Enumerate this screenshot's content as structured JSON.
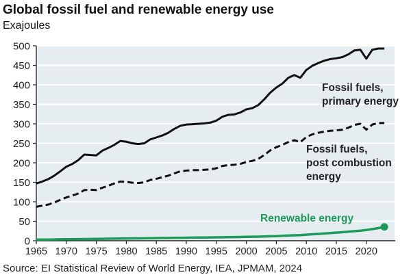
{
  "chart_data": {
    "type": "line",
    "title": "Global fossil fuel and renewable energy use",
    "subtitle": "Exajoules",
    "source": "Source: EI Statistical Review of World Energy, IEA, JPMAM, 2024",
    "xlabel": "",
    "ylabel": "Exajoules",
    "xlim": [
      1965,
      2023
    ],
    "ylim": [
      0,
      500
    ],
    "yticks": [
      "0",
      "50",
      "100",
      "150",
      "200",
      "250",
      "300",
      "350",
      "400",
      "450",
      "500"
    ],
    "xticks": [
      "1965",
      "1970",
      "1975",
      "1980",
      "1985",
      "1990",
      "1995",
      "2000",
      "2005",
      "2010",
      "2015",
      "2020"
    ],
    "grid": true,
    "x_start": 1965,
    "series": [
      {
        "name": "Fossil fuels, primary energy",
        "label_lines": [
          "Fossil fuels,",
          "primary energy"
        ],
        "color": "#111111",
        "style": "solid",
        "values": [
          147,
          152,
          158,
          167,
          178,
          190,
          197,
          207,
          221,
          220,
          219,
          231,
          238,
          246,
          256,
          254,
          250,
          248,
          250,
          260,
          265,
          270,
          277,
          287,
          295,
          298,
          299,
          300,
          301,
          303,
          308,
          318,
          323,
          324,
          329,
          337,
          340,
          348,
          363,
          380,
          393,
          403,
          418,
          425,
          418,
          438,
          449,
          456,
          462,
          466,
          468,
          471,
          478,
          488,
          490,
          467,
          490,
          493,
          493
        ]
      },
      {
        "name": "Fossil fuels, post combustion energy",
        "label_lines": [
          "Fossil fuels,",
          "post combustion",
          "energy"
        ],
        "color": "#111111",
        "style": "dashed",
        "values": [
          87,
          90,
          93,
          98,
          105,
          111,
          116,
          121,
          130,
          131,
          130,
          136,
          141,
          147,
          152,
          151,
          149,
          148,
          150,
          156,
          159,
          163,
          167,
          173,
          178,
          180,
          181,
          181,
          182,
          183,
          186,
          192,
          194,
          195,
          197,
          202,
          205,
          210,
          220,
          232,
          240,
          246,
          253,
          258,
          253,
          266,
          273,
          277,
          280,
          282,
          283,
          285,
          290,
          297,
          300,
          285,
          298,
          302,
          302
        ]
      },
      {
        "name": "Renewable energy",
        "label_lines": [
          "Renewable energy"
        ],
        "color": "#1e9a5a",
        "style": "solid",
        "values": [
          3,
          3,
          3.2,
          3.4,
          3.6,
          3.8,
          4,
          4.2,
          4.4,
          4.6,
          4.8,
          5,
          5.2,
          5.4,
          5.6,
          5.8,
          6,
          6.2,
          6.4,
          6.6,
          6.8,
          7,
          7.2,
          7.4,
          7.6,
          7.8,
          8,
          8.2,
          8.4,
          8.6,
          8.8,
          9,
          9.2,
          9.4,
          9.6,
          10,
          10.3,
          10.6,
          11,
          11.5,
          12,
          12.6,
          13.3,
          14,
          14.6,
          15.6,
          16.6,
          17.6,
          18.6,
          19.7,
          20.8,
          22,
          23.2,
          24.6,
          26,
          27.6,
          30,
          32.5,
          35.5
        ]
      }
    ]
  }
}
